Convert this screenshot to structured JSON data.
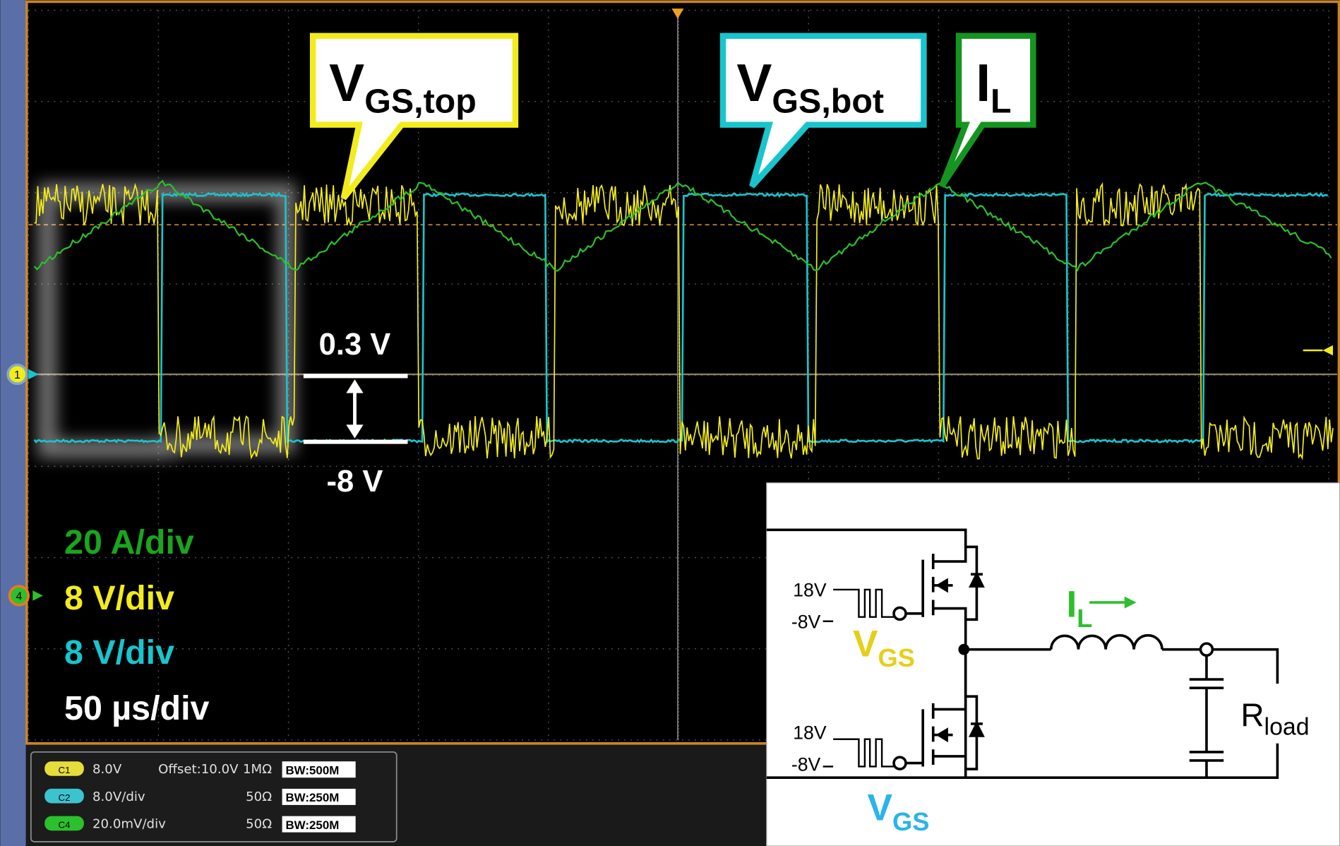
{
  "callouts": [
    {
      "main": "V",
      "sub": "GS,top"
    },
    {
      "main": "V",
      "sub": "GS,bot"
    },
    {
      "main": "I",
      "sub": "L"
    }
  ],
  "measure": {
    "upper": "0.3 V",
    "lower": "-8 V"
  },
  "scales": [
    "20 A/div",
    "8 V/div",
    "8 V/div",
    "50 µs/div"
  ],
  "markers": [
    "1",
    "4"
  ],
  "channels": [
    {
      "id": "C1",
      "scale": "8.0V",
      "offset": "Offset:10.0V",
      "impedance": "1MΩ",
      "bandwidth": "BW:500M"
    },
    {
      "id": "C2",
      "scale": "8.0V/div",
      "impedance": "50Ω",
      "bandwidth": "BW:250M"
    },
    {
      "id": "C4",
      "scale": "20.0mV/div",
      "impedance": "50Ω",
      "bandwidth": "BW:250M"
    }
  ],
  "circuit": {
    "top_high": "18V",
    "top_low": "-8V",
    "top_gate": {
      "main": "V",
      "sub": "GS"
    },
    "bottom_high": "18V",
    "bottom_low": "-8V",
    "bottom_gate": {
      "main": "V",
      "sub": "GS"
    },
    "current": {
      "main": "I",
      "sub": "L"
    },
    "load": {
      "main": "R",
      "sub": "load"
    }
  }
}
